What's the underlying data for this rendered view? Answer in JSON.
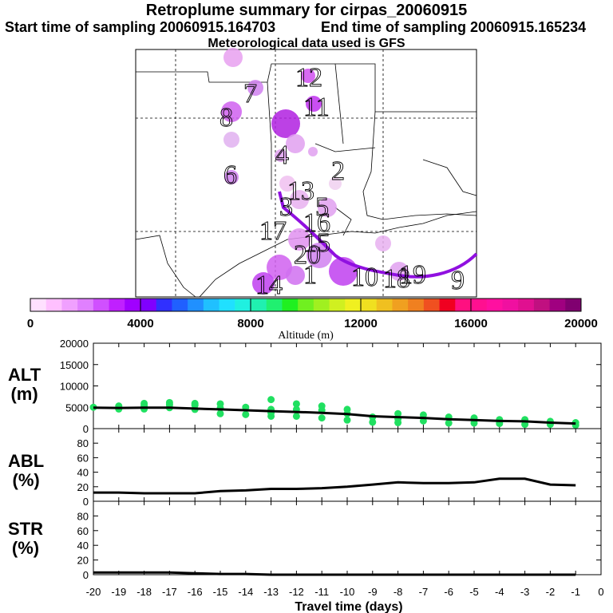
{
  "header": {
    "title": "Retroplume summary for cirpas_20060915",
    "start_label": "Start time of sampling 20060915.164703",
    "end_label": "End time of sampling 20060915.165234",
    "met_label": "Meteorological data used is GFS"
  },
  "colorbar": {
    "ticks": [
      "0",
      "4000",
      "8000",
      "12000",
      "16000",
      "20000"
    ],
    "label": "Altitude (m)",
    "colors": [
      "#ffe0ff",
      "#ffc0ff",
      "#f0a0ff",
      "#e080ff",
      "#d050ff",
      "#c020ff",
      "#a000ff",
      "#8000ff",
      "#3030ff",
      "#2060ff",
      "#2090ff",
      "#20c0ff",
      "#20e0ff",
      "#20f0e0",
      "#20f0b0",
      "#20f070",
      "#20f020",
      "#70f020",
      "#a0f020",
      "#d0f020",
      "#f0f020",
      "#f0e020",
      "#f0c020",
      "#f0a020",
      "#f08020",
      "#f05020",
      "#f00020",
      "#ff1080",
      "#ff1090",
      "#ff10a0",
      "#f010a0",
      "#e01090",
      "#c01080",
      "#a00080",
      "#800070"
    ]
  },
  "map": {
    "day_labels": [
      "1",
      "2",
      "3",
      "4",
      "5",
      "6",
      "7",
      "8",
      "9",
      "10",
      "11",
      "12",
      "13",
      "14",
      "15",
      "16",
      "17",
      "18",
      "19",
      "20"
    ]
  },
  "panels": {
    "alt": {
      "label_line1": "ALT",
      "label_line2": "(m)"
    },
    "abl": {
      "label_line1": "ABL",
      "label_line2": "(%)"
    },
    "str": {
      "label_line1": "STR",
      "label_line2": "(%)"
    }
  },
  "xaxis": {
    "label": "Travel time (days)",
    "ticks": [
      "-20",
      "-19",
      "-18",
      "-17",
      "-16",
      "-15",
      "-14",
      "-13",
      "-12",
      "-11",
      "-10",
      "-9",
      "-8",
      "-7",
      "-6",
      "-5",
      "-4",
      "-3",
      "-2",
      "-1",
      "0"
    ]
  },
  "colors": {
    "line": "#000000",
    "dots": "#20e060",
    "track": "#9010e0"
  },
  "chart_data": [
    {
      "type": "line",
      "title": "ALT (m)",
      "xlabel": "Travel time (days)",
      "ylim": [
        0,
        20000
      ],
      "yticks": [
        "0",
        "5000",
        "10000",
        "15000",
        "20000"
      ],
      "x": [
        -20,
        -19,
        -18,
        -17,
        -16,
        -15,
        -14,
        -13,
        -12,
        -11,
        -10,
        -9,
        -8,
        -7,
        -6,
        -5,
        -4,
        -3,
        -2,
        -1
      ],
      "values": [
        4900,
        4850,
        4900,
        4900,
        4700,
        4500,
        4300,
        4100,
        3900,
        3700,
        3400,
        2900,
        2700,
        2500,
        2200,
        2000,
        1800,
        1700,
        1400,
        1200
      ],
      "scatter_x": [
        -20,
        -19,
        -19,
        -18,
        -18,
        -18,
        -17,
        -17,
        -17,
        -16,
        -16,
        -16,
        -15,
        -15,
        -15,
        -14,
        -14,
        -13,
        -13,
        -13,
        -13,
        -12,
        -12,
        -12,
        -11,
        -11,
        -11,
        -10,
        -10,
        -10,
        -9,
        -9,
        -8,
        -8,
        -8,
        -7,
        -7,
        -6,
        -6,
        -5,
        -5,
        -4,
        -4,
        -3,
        -3,
        -2,
        -2,
        -1,
        -1
      ],
      "scatter_y": [
        5000,
        4600,
        5300,
        4600,
        5400,
        5900,
        4900,
        5600,
        6100,
        4500,
        5500,
        5900,
        3500,
        4800,
        5800,
        3300,
        5000,
        2900,
        3700,
        4500,
        6800,
        2900,
        4500,
        5800,
        2500,
        4300,
        5300,
        2000,
        3500,
        4500,
        1500,
        2700,
        1400,
        2300,
        3500,
        1800,
        3200,
        1300,
        2700,
        1300,
        2500,
        1200,
        2100,
        1000,
        2100,
        1000,
        1700,
        800,
        1400
      ]
    },
    {
      "type": "line",
      "title": "ABL (%)",
      "xlabel": "Travel time (days)",
      "ylim": [
        0,
        100
      ],
      "yticks": [
        "0",
        "20",
        "40",
        "60",
        "80"
      ],
      "x": [
        -20,
        -19,
        -18,
        -17,
        -16,
        -15,
        -14,
        -13,
        -12,
        -11,
        -10,
        -9,
        -8,
        -7,
        -6,
        -5,
        -4,
        -3,
        -2,
        -1
      ],
      "values": [
        12,
        12,
        11,
        11,
        11,
        14,
        15,
        17,
        17,
        18,
        20,
        23,
        26,
        25,
        25,
        26,
        31,
        31,
        23,
        22
      ]
    },
    {
      "type": "line",
      "title": "STR (%)",
      "xlabel": "Travel time (days)",
      "ylim": [
        0,
        100
      ],
      "yticks": [
        "0",
        "20",
        "40",
        "60",
        "80"
      ],
      "x": [
        -20,
        -19,
        -18,
        -17,
        -16,
        -15,
        -14,
        -13,
        -12,
        -11,
        -10,
        -9,
        -8,
        -7,
        -6,
        -5,
        -4,
        -3,
        -2,
        -1
      ],
      "values": [
        3,
        3,
        3,
        3,
        2,
        1,
        1,
        0,
        0,
        0,
        0,
        0,
        0,
        0,
        0,
        0,
        0,
        0,
        0,
        0
      ]
    }
  ]
}
